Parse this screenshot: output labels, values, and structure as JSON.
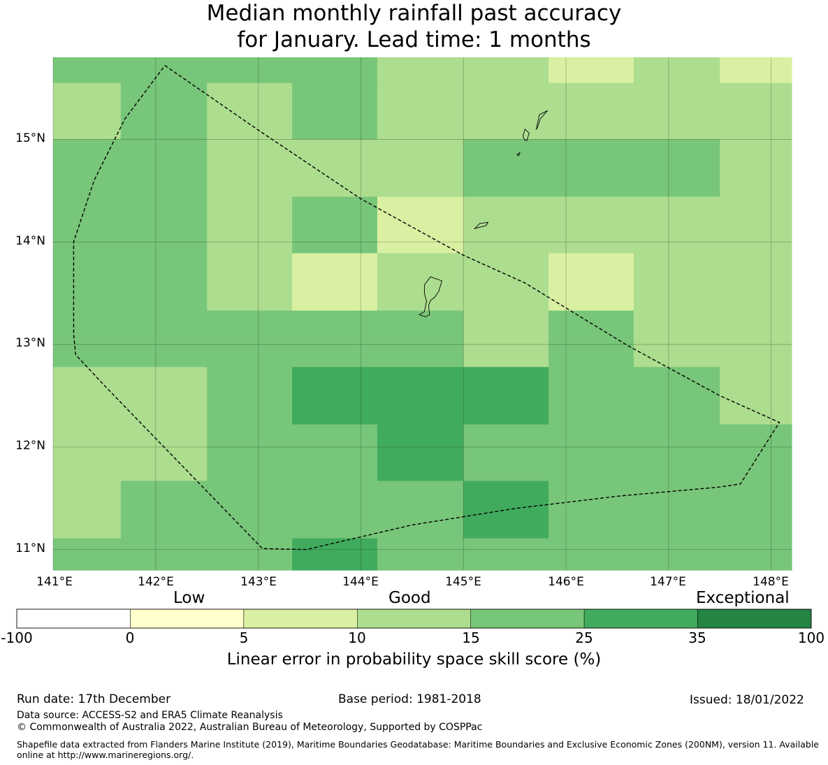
{
  "title_line1": "Median monthly rainfall past accuracy",
  "title_line2": "for January. Lead time: 1 months",
  "colors": {
    "c0": "#ffffcc",
    "c5": "#d9f0a3",
    "c10": "#addd8e",
    "c15": "#78c679",
    "c25": "#41ab5d",
    "c35": "#238443",
    "c_neg": "#ffffff"
  },
  "chart_data": {
    "type": "heatmap",
    "x_range": [
      141.0,
      148.2
    ],
    "y_range": [
      10.8,
      15.8
    ],
    "lon_ticks": [
      "141°E",
      "142°E",
      "143°E",
      "144°E",
      "145°E",
      "146°E",
      "147°E",
      "148°E"
    ],
    "lat_ticks": [
      "15°N",
      "14°N",
      "13°N",
      "12°N",
      "11°N"
    ],
    "lon_tick_values": [
      141,
      142,
      143,
      144,
      145,
      146,
      147,
      148
    ],
    "lat_tick_values": [
      15,
      14,
      13,
      12,
      11
    ],
    "cells_note": "cell value = colour class lower bound (0,5,10,15,25)",
    "cells": [
      {
        "x0": 141.0,
        "x1": 144.16,
        "y0": 15.55,
        "y1": 15.8,
        "v": 15
      },
      {
        "x0": 144.16,
        "x1": 145.83,
        "y0": 15.55,
        "y1": 15.8,
        "v": 10
      },
      {
        "x0": 145.83,
        "x1": 146.66,
        "y0": 15.55,
        "y1": 15.8,
        "v": 5
      },
      {
        "x0": 146.66,
        "x1": 147.5,
        "y0": 15.55,
        "y1": 15.8,
        "v": 10
      },
      {
        "x0": 147.5,
        "x1": 148.2,
        "y0": 15.55,
        "y1": 15.8,
        "v": 5
      },
      {
        "x0": 141.0,
        "x1": 141.66,
        "y0": 15.0,
        "y1": 15.55,
        "v": 10
      },
      {
        "x0": 141.66,
        "x1": 142.5,
        "y0": 15.0,
        "y1": 15.55,
        "v": 15
      },
      {
        "x0": 142.5,
        "x1": 143.33,
        "y0": 15.0,
        "y1": 15.55,
        "v": 10
      },
      {
        "x0": 143.33,
        "x1": 144.16,
        "y0": 15.0,
        "y1": 15.55,
        "v": 15
      },
      {
        "x0": 144.16,
        "x1": 148.2,
        "y0": 15.0,
        "y1": 15.55,
        "v": 10
      },
      {
        "x0": 141.0,
        "x1": 142.5,
        "y0": 14.44,
        "y1": 15.0,
        "v": 15
      },
      {
        "x0": 142.5,
        "x1": 145.0,
        "y0": 14.44,
        "y1": 15.0,
        "v": 10
      },
      {
        "x0": 145.0,
        "x1": 147.5,
        "y0": 14.44,
        "y1": 15.0,
        "v": 15
      },
      {
        "x0": 147.5,
        "x1": 148.2,
        "y0": 14.44,
        "y1": 15.0,
        "v": 10
      },
      {
        "x0": 141.0,
        "x1": 142.5,
        "y0": 13.89,
        "y1": 14.44,
        "v": 15
      },
      {
        "x0": 142.5,
        "x1": 143.33,
        "y0": 13.89,
        "y1": 14.44,
        "v": 10
      },
      {
        "x0": 143.33,
        "x1": 144.16,
        "y0": 13.89,
        "y1": 14.44,
        "v": 15
      },
      {
        "x0": 144.16,
        "x1": 145.0,
        "y0": 13.89,
        "y1": 14.44,
        "v": 5
      },
      {
        "x0": 145.0,
        "x1": 148.2,
        "y0": 13.89,
        "y1": 14.44,
        "v": 10
      },
      {
        "x0": 141.0,
        "x1": 142.5,
        "y0": 13.33,
        "y1": 13.89,
        "v": 15
      },
      {
        "x0": 142.5,
        "x1": 143.33,
        "y0": 13.33,
        "y1": 13.89,
        "v": 10
      },
      {
        "x0": 143.33,
        "x1": 144.16,
        "y0": 13.33,
        "y1": 13.89,
        "v": 5
      },
      {
        "x0": 144.16,
        "x1": 145.83,
        "y0": 13.33,
        "y1": 13.89,
        "v": 10
      },
      {
        "x0": 145.83,
        "x1": 146.66,
        "y0": 13.33,
        "y1": 13.89,
        "v": 5
      },
      {
        "x0": 146.66,
        "x1": 148.2,
        "y0": 13.33,
        "y1": 13.89,
        "v": 10
      },
      {
        "x0": 141.0,
        "x1": 145.0,
        "y0": 12.78,
        "y1": 13.33,
        "v": 15
      },
      {
        "x0": 145.0,
        "x1": 145.83,
        "y0": 12.78,
        "y1": 13.33,
        "v": 10
      },
      {
        "x0": 145.83,
        "x1": 146.66,
        "y0": 12.78,
        "y1": 13.33,
        "v": 15
      },
      {
        "x0": 146.66,
        "x1": 148.2,
        "y0": 12.78,
        "y1": 13.33,
        "v": 10
      },
      {
        "x0": 141.0,
        "x1": 142.5,
        "y0": 12.22,
        "y1": 12.78,
        "v": 10
      },
      {
        "x0": 142.5,
        "x1": 143.33,
        "y0": 12.22,
        "y1": 12.78,
        "v": 15
      },
      {
        "x0": 143.33,
        "x1": 145.83,
        "y0": 12.22,
        "y1": 12.78,
        "v": 25
      },
      {
        "x0": 145.83,
        "x1": 147.5,
        "y0": 12.22,
        "y1": 12.78,
        "v": 15
      },
      {
        "x0": 147.5,
        "x1": 148.2,
        "y0": 12.22,
        "y1": 12.78,
        "v": 10
      },
      {
        "x0": 141.0,
        "x1": 142.5,
        "y0": 11.67,
        "y1": 12.22,
        "v": 10
      },
      {
        "x0": 142.5,
        "x1": 144.16,
        "y0": 11.67,
        "y1": 12.22,
        "v": 15
      },
      {
        "x0": 144.16,
        "x1": 145.0,
        "y0": 11.67,
        "y1": 12.22,
        "v": 25
      },
      {
        "x0": 145.0,
        "x1": 148.2,
        "y0": 11.67,
        "y1": 12.22,
        "v": 15
      },
      {
        "x0": 141.0,
        "x1": 141.66,
        "y0": 11.11,
        "y1": 11.67,
        "v": 10
      },
      {
        "x0": 141.66,
        "x1": 145.0,
        "y0": 11.11,
        "y1": 11.67,
        "v": 15
      },
      {
        "x0": 145.0,
        "x1": 145.83,
        "y0": 11.11,
        "y1": 11.67,
        "v": 25
      },
      {
        "x0": 145.83,
        "x1": 148.2,
        "y0": 11.11,
        "y1": 11.67,
        "v": 15
      },
      {
        "x0": 141.0,
        "x1": 143.33,
        "y0": 10.8,
        "y1": 11.11,
        "v": 15
      },
      {
        "x0": 143.33,
        "x1": 144.16,
        "y0": 10.8,
        "y1": 11.11,
        "v": 25
      },
      {
        "x0": 144.16,
        "x1": 148.2,
        "y0": 10.8,
        "y1": 11.11,
        "v": 15
      }
    ],
    "eez_boundary": [
      [
        142.09,
        15.72
      ],
      [
        143.0,
        15.09
      ],
      [
        144.0,
        14.42
      ],
      [
        145.0,
        13.87
      ],
      [
        145.6,
        13.6
      ],
      [
        146.6,
        12.99
      ],
      [
        147.5,
        12.5
      ],
      [
        148.08,
        12.24
      ],
      [
        147.7,
        11.64
      ],
      [
        147.5,
        11.61
      ],
      [
        146.5,
        11.52
      ],
      [
        145.5,
        11.4
      ],
      [
        144.5,
        11.24
      ],
      [
        143.47,
        11.0
      ],
      [
        143.04,
        11.01
      ],
      [
        141.5,
        12.6
      ],
      [
        141.22,
        12.9
      ],
      [
        141.2,
        13.1
      ],
      [
        141.2,
        13.5
      ],
      [
        141.2,
        14.0
      ],
      [
        141.4,
        14.6
      ],
      [
        141.7,
        15.2
      ],
      [
        142.09,
        15.72
      ]
    ],
    "islands": [
      [
        [
          144.62,
          13.58
        ],
        [
          144.68,
          13.66
        ],
        [
          144.79,
          13.62
        ],
        [
          144.76,
          13.52
        ],
        [
          144.72,
          13.46
        ],
        [
          144.68,
          13.43
        ],
        [
          144.66,
          13.38
        ],
        [
          144.67,
          13.29
        ],
        [
          144.63,
          13.27
        ],
        [
          144.57,
          13.29
        ],
        [
          144.62,
          13.32
        ],
        [
          144.64,
          13.42
        ],
        [
          144.62,
          13.5
        ],
        [
          144.62,
          13.58
        ]
      ],
      [
        [
          145.11,
          14.13
        ],
        [
          145.16,
          14.18
        ],
        [
          145.24,
          14.19
        ],
        [
          145.22,
          14.16
        ],
        [
          145.15,
          14.14
        ],
        [
          145.11,
          14.13
        ]
      ],
      [
        [
          145.6,
          14.99
        ],
        [
          145.58,
          15.03
        ],
        [
          145.6,
          15.1
        ],
        [
          145.64,
          15.06
        ],
        [
          145.62,
          14.99
        ],
        [
          145.6,
          14.99
        ]
      ],
      [
        [
          145.71,
          15.1
        ],
        [
          145.74,
          15.24
        ],
        [
          145.82,
          15.28
        ],
        [
          145.75,
          15.2
        ],
        [
          145.72,
          15.11
        ],
        [
          145.71,
          15.1
        ]
      ],
      [
        [
          145.52,
          14.85
        ],
        [
          145.55,
          14.87
        ],
        [
          145.54,
          14.84
        ],
        [
          145.52,
          14.85
        ]
      ]
    ]
  },
  "colorbar": {
    "labels": [
      "-100",
      "0",
      "5",
      "10",
      "15",
      "25",
      "35",
      "100"
    ],
    "classes": [
      "Low",
      "Good",
      "Exceptional"
    ],
    "title": "Linear error in probability space skill score (%)"
  },
  "footer": {
    "run_date": "Run date: 17th December",
    "base_period": "Base period: 1981-2018",
    "issued": "Issued: 18/01/2022",
    "data_source": "Data source: ACCESS-S2 and ERA5 Climate Reanalysis",
    "copyright": "© Commonwealth of Australia 2022, Australian Bureau of Meteorology, Supported by COSPPac",
    "shapefile": "Shapefile data extracted from Flanders Marine Institute (2019), Maritime Boundaries Geodatabase: Maritime Boundaries and Exclusive Economic Zones (200NM), version 11. Available online at http://www.marineregions.org/."
  }
}
